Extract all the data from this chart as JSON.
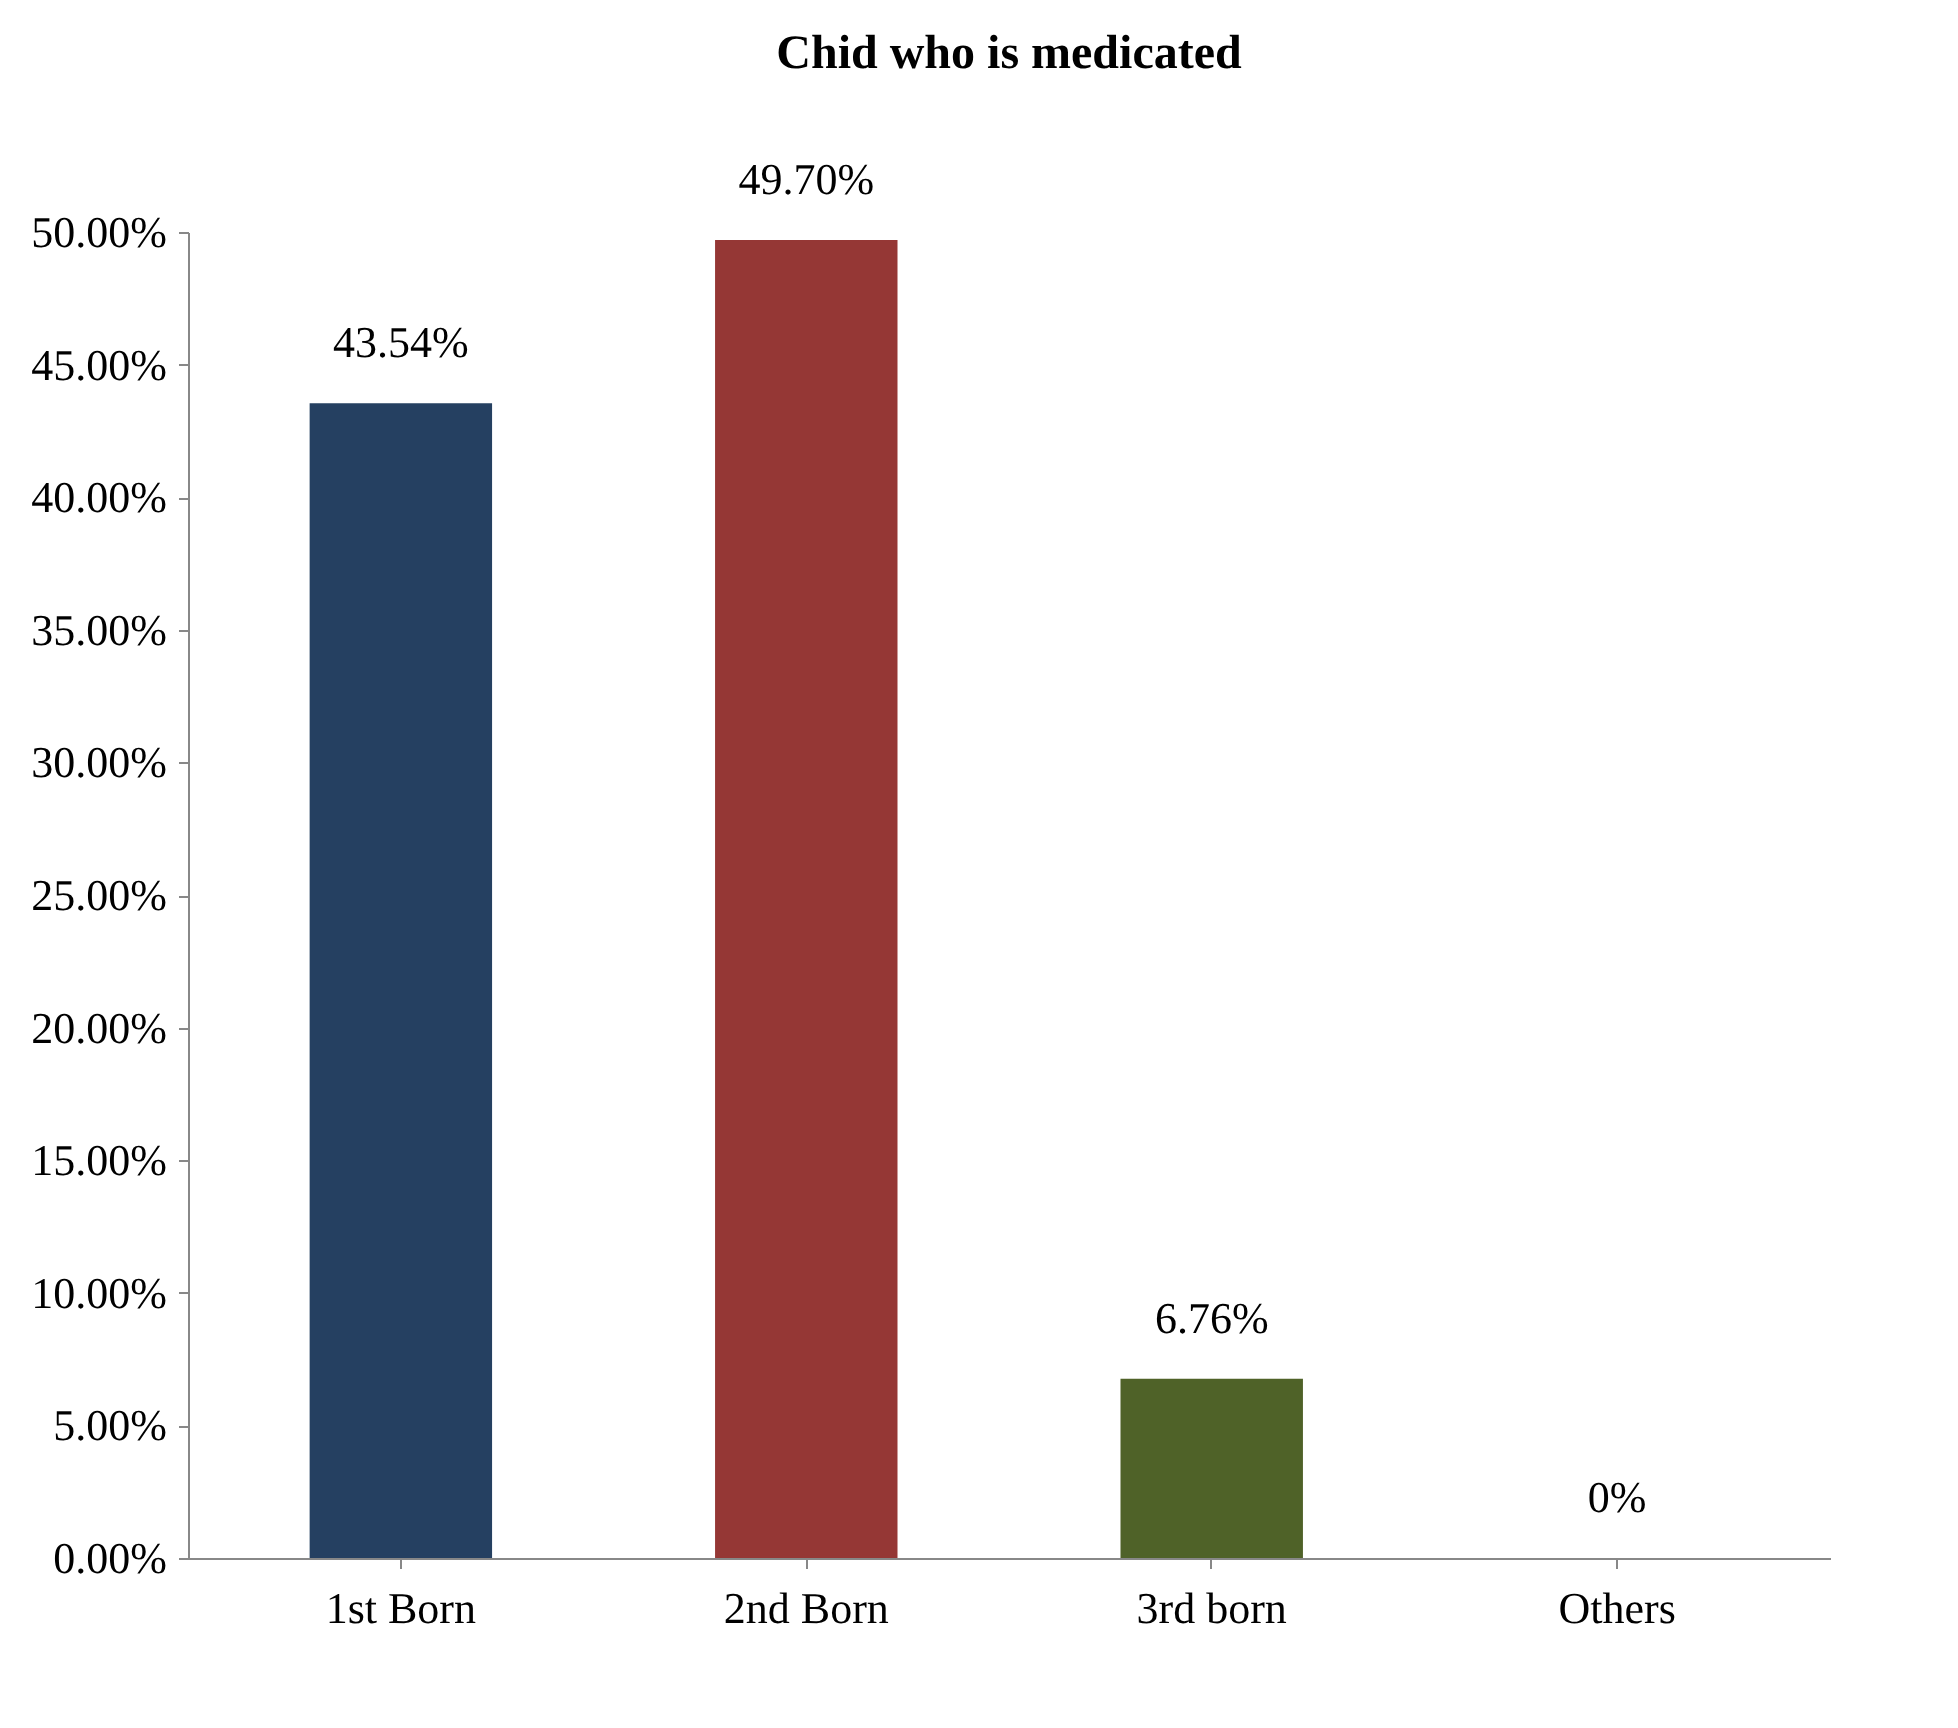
{
  "chart_data": {
    "type": "bar",
    "title": "Chid who is medicated",
    "categories": [
      "1st Born",
      "2nd Born",
      "3rd born",
      "Others"
    ],
    "values": [
      43.54,
      49.7,
      6.76,
      0
    ],
    "colors": [
      "#254061",
      "#953735",
      "#4f6228",
      "#376092"
    ],
    "value_labels": [
      "43.54%",
      "49.70%",
      "6.76%",
      "0%"
    ],
    "ylim": [
      0,
      50
    ],
    "yticks": [
      {
        "value": 0,
        "label": "0.00%"
      },
      {
        "value": 5,
        "label": "5.00%"
      },
      {
        "value": 10,
        "label": "10.00%"
      },
      {
        "value": 15,
        "label": "15.00%"
      },
      {
        "value": 20,
        "label": "20.00%"
      },
      {
        "value": 25,
        "label": "25.00%"
      },
      {
        "value": 30,
        "label": "30.00%"
      },
      {
        "value": 35,
        "label": "35.00%"
      },
      {
        "value": 40,
        "label": "40.00%"
      },
      {
        "value": 45,
        "label": "45.00%"
      },
      {
        "value": 50,
        "label": "50.00%"
      }
    ],
    "grid": false
  }
}
